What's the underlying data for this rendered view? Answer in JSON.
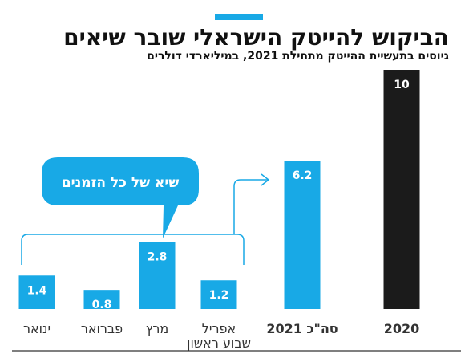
{
  "chart_data": {
    "type": "bar",
    "title": "הביקוש להייטק הישראלי שובר שיאים",
    "subtitle": "גיוסים בתעשיית ההייטק מתחילת 2021, במיליארדי דולרים",
    "annotation": "שיא של כל הזמנים",
    "ylim": [
      0,
      10
    ],
    "bars": [
      {
        "category": "ינואר",
        "value": 1.4,
        "color": "#18a9e6"
      },
      {
        "category": "פברואר",
        "value": 0.8,
        "color": "#18a9e6"
      },
      {
        "category": "מרץ",
        "value": 2.8,
        "color": "#18a9e6"
      },
      {
        "category": "אפריל",
        "category_line2": "שבוע ראשון",
        "value": 1.2,
        "color": "#18a9e6"
      },
      {
        "category": "סה\"כ 2021",
        "value": 6.2,
        "color": "#18a9e6",
        "label_color": "#18a9e6",
        "label_bold": true
      },
      {
        "category": "2020",
        "value": 10,
        "color": "#1b1b1b",
        "label_color": "#111111",
        "label_bold": true
      }
    ]
  }
}
